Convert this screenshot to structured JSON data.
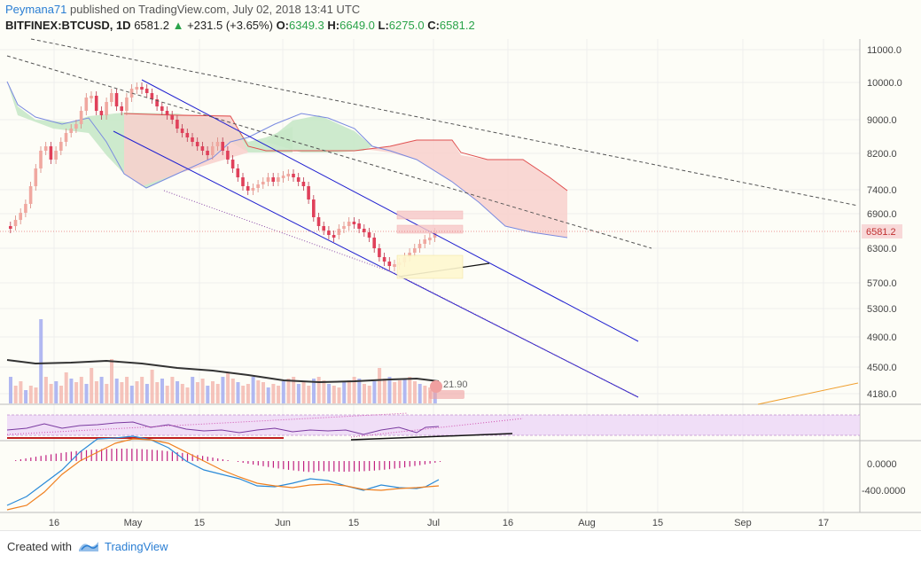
{
  "header": {
    "author": "Peymana71",
    "published_text": "published on TradingView.com, July 02, 2018 13:41 UTC",
    "symbol": "BITFINEX:BTCUSD, 1D",
    "price": "6581.2",
    "change": "+231.5 (+3.65%)",
    "open_label": "O:",
    "open": "6349.3",
    "high_label": "H:",
    "high": "6649.0",
    "low_label": "L:",
    "low": "6275.0",
    "close_label": "C:",
    "close": "6581.2"
  },
  "price_axis": {
    "ticks": [
      "11000.0",
      "10000.0",
      "9000.0",
      "8200.0",
      "7400.0",
      "6900.0",
      "6300.0",
      "5700.0",
      "5300.0",
      "4900.0",
      "4500.0",
      "4180.0"
    ],
    "current_price_label": "6581.2",
    "current_price_color": "#e57373"
  },
  "rsi_panel": {
    "ticks": []
  },
  "macd_panel": {
    "ticks": [
      "0.0000",
      "-400.0000"
    ]
  },
  "volume_overlay_text": "21.90",
  "time_axis": {
    "ticks": [
      "16",
      "May",
      "15",
      "Jun",
      "15",
      "Jul",
      "16",
      "Aug",
      "15",
      "Sep",
      "17"
    ]
  },
  "footer": {
    "created_with": "Created with",
    "brand": "TradingView"
  },
  "colors": {
    "up": "#f0a8a0",
    "down": "#e0405a",
    "channel": "#2020d0",
    "kumo_bear": "#f8d0cc",
    "kumo_bull": "#c8e8c8",
    "accent": "#2a7ed3",
    "rsi_band": "#ecd6f6",
    "macd_line": "#2a8ad8",
    "signal_line": "#f08020",
    "hist": "#c02080"
  }
}
